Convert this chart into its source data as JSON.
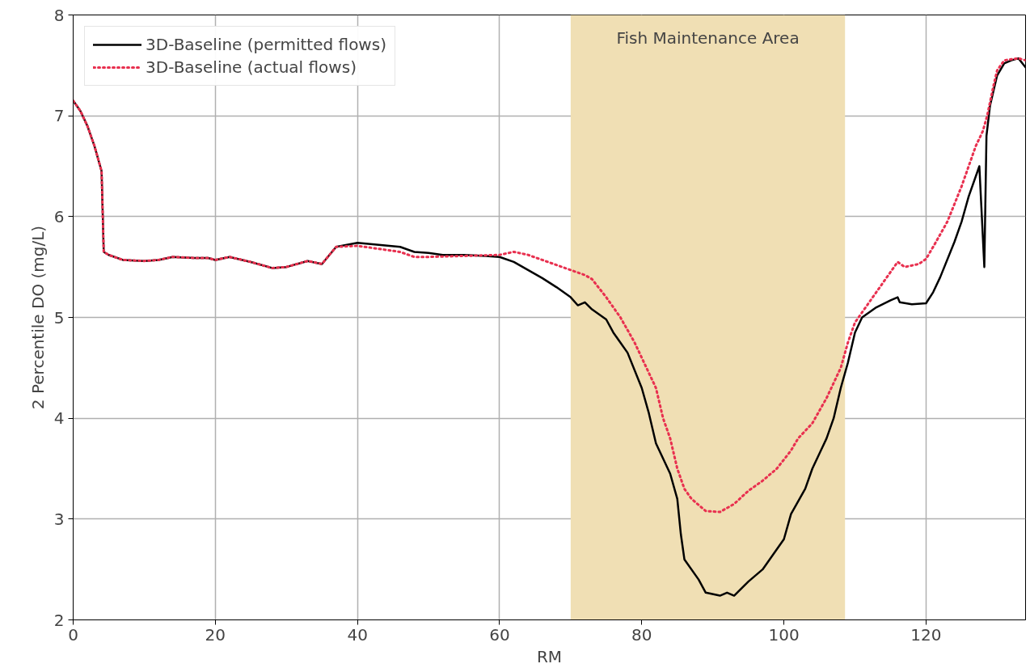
{
  "chart_data": {
    "type": "line",
    "xlabel": "RM",
    "ylabel": "2 Percentile DO (mg/L)",
    "xlim": [
      0,
      134
    ],
    "ylim": [
      2,
      8
    ],
    "xticks": [
      0,
      20,
      40,
      60,
      80,
      100,
      120
    ],
    "yticks": [
      2,
      3,
      4,
      5,
      6,
      7,
      8
    ],
    "grid": true,
    "legend": "top left",
    "bands": [
      {
        "axis": "x",
        "from": 70,
        "to": 108.6,
        "label": "Fish Maintenance Area",
        "color": "#f0dfb4"
      }
    ],
    "series": [
      {
        "name": "3D-Baseline (permitted flows)",
        "color": "#000000",
        "line_style": "solid",
        "x": [
          0,
          1,
          2,
          3,
          4,
          4.3,
          5,
          7,
          10,
          12,
          14,
          17,
          19,
          20,
          22,
          25,
          28,
          30,
          33,
          35,
          37,
          40,
          43,
          46,
          48,
          50,
          52,
          55,
          58,
          60,
          62,
          64,
          66,
          68,
          70,
          71,
          72,
          73,
          75,
          76,
          78,
          80,
          81,
          82,
          84,
          85,
          85.5,
          86,
          88,
          89,
          91,
          92,
          93,
          95,
          97,
          98,
          100,
          101,
          103,
          104,
          106,
          107,
          108,
          109,
          110,
          111,
          113,
          115,
          116,
          116.3,
          118,
          120,
          121,
          122,
          124,
          125,
          126,
          127.5,
          128.2,
          128.5,
          129,
          130,
          131,
          132,
          133,
          134
        ],
        "values": [
          7.15,
          7.05,
          6.9,
          6.7,
          6.45,
          5.65,
          5.62,
          5.57,
          5.56,
          5.57,
          5.6,
          5.59,
          5.59,
          5.57,
          5.6,
          5.55,
          5.49,
          5.5,
          5.56,
          5.53,
          5.7,
          5.74,
          5.72,
          5.7,
          5.65,
          5.64,
          5.62,
          5.62,
          5.61,
          5.6,
          5.55,
          5.47,
          5.39,
          5.3,
          5.2,
          5.12,
          5.15,
          5.08,
          4.98,
          4.85,
          4.65,
          4.3,
          4.05,
          3.75,
          3.45,
          3.2,
          2.85,
          2.6,
          2.4,
          2.27,
          2.24,
          2.27,
          2.24,
          2.38,
          2.5,
          2.6,
          2.8,
          3.05,
          3.3,
          3.5,
          3.8,
          4.0,
          4.3,
          4.55,
          4.85,
          5.0,
          5.1,
          5.17,
          5.2,
          5.15,
          5.13,
          5.14,
          5.25,
          5.4,
          5.75,
          5.95,
          6.2,
          6.5,
          5.5,
          6.8,
          7.1,
          7.4,
          7.52,
          7.55,
          7.57,
          7.48
        ]
      },
      {
        "name": "3D-Baseline (actual flows)",
        "color": "#e8304f",
        "line_style": "dotted",
        "x": [
          0,
          1,
          2,
          3,
          4,
          4.3,
          5,
          7,
          10,
          12,
          14,
          17,
          19,
          20,
          22,
          25,
          28,
          30,
          33,
          35,
          37,
          40,
          43,
          46,
          48,
          50,
          55,
          60,
          62,
          64,
          66,
          68,
          70,
          72,
          73,
          75,
          77,
          79,
          80,
          82,
          83,
          84,
          85,
          86,
          87,
          89,
          91,
          93,
          95,
          97,
          99,
          101,
          102,
          104,
          106,
          108,
          109,
          110,
          112,
          114,
          116,
          117,
          119,
          120,
          121,
          123,
          125,
          126,
          127,
          128,
          128.6,
          129.5,
          130,
          131,
          133,
          134
        ],
        "values": [
          7.15,
          7.05,
          6.9,
          6.7,
          6.45,
          5.65,
          5.62,
          5.57,
          5.56,
          5.57,
          5.6,
          5.59,
          5.59,
          5.57,
          5.6,
          5.55,
          5.49,
          5.5,
          5.56,
          5.53,
          5.7,
          5.71,
          5.68,
          5.65,
          5.6,
          5.6,
          5.61,
          5.62,
          5.65,
          5.62,
          5.57,
          5.52,
          5.47,
          5.42,
          5.38,
          5.2,
          5.0,
          4.75,
          4.6,
          4.3,
          4.0,
          3.8,
          3.5,
          3.3,
          3.2,
          3.08,
          3.07,
          3.15,
          3.28,
          3.38,
          3.5,
          3.68,
          3.8,
          3.95,
          4.2,
          4.5,
          4.75,
          4.95,
          5.15,
          5.35,
          5.55,
          5.5,
          5.53,
          5.58,
          5.7,
          5.95,
          6.3,
          6.5,
          6.7,
          6.85,
          7.0,
          7.3,
          7.45,
          7.55,
          7.57,
          7.55
        ]
      }
    ]
  }
}
